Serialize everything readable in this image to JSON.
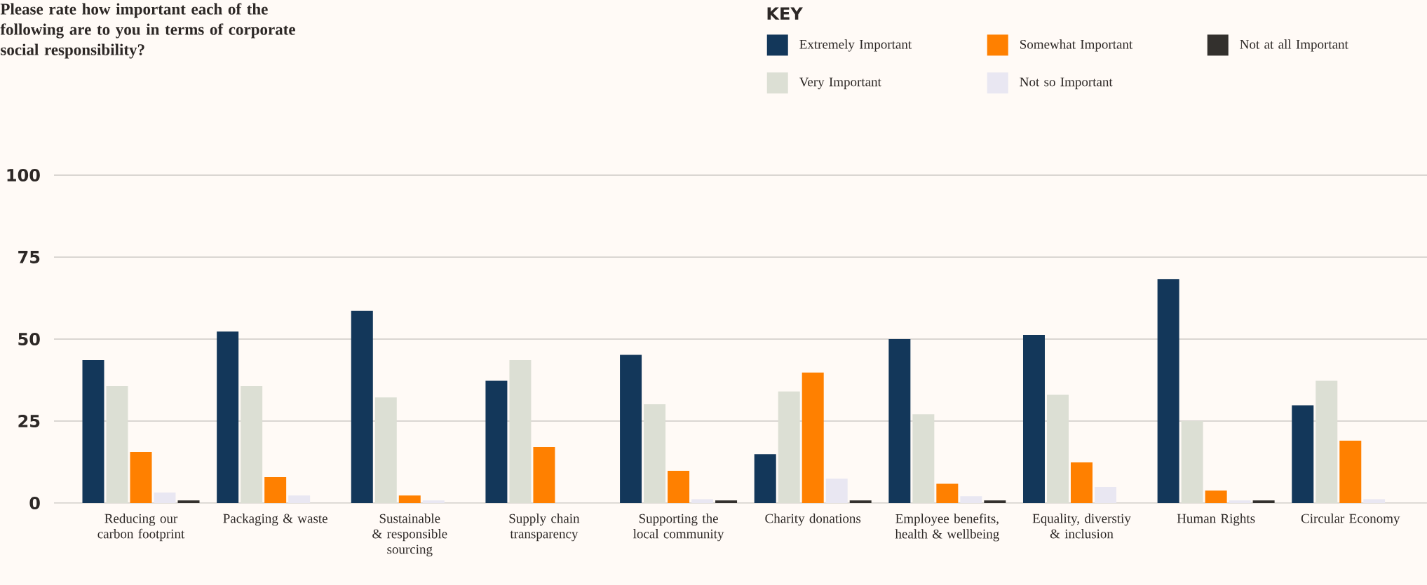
{
  "chart_data": {
    "type": "bar",
    "title": "Please rate how important each of the following are to you in terms of corporate social responsibility?",
    "legend_title": "KEY",
    "categories": [
      "Reducing our carbon footprint",
      "Packaging & waste",
      "Sustainable & responsible sourcing",
      "Supply chain transparency",
      "Supporting the local community",
      "Charity donations",
      "Employee benefits, health & wellbeing",
      "Equality, diverstiy & inclusion",
      "Human Rights",
      "Circular Economy"
    ],
    "series": [
      {
        "name": "Extremely Important",
        "color": "#13375a",
        "values": [
          43.6,
          52.3,
          58.6,
          37.3,
          45.2,
          14.9,
          50.0,
          51.3,
          68.3,
          29.8
        ]
      },
      {
        "name": "Very Important",
        "color": "#dcdfd4",
        "values": [
          35.7,
          35.7,
          32.2,
          43.6,
          30.1,
          34.0,
          27.1,
          33.0,
          25.0,
          37.3
        ]
      },
      {
        "name": "Somewhat Important",
        "color": "#ff8000",
        "values": [
          15.6,
          7.9,
          2.3,
          17.1,
          9.8,
          39.8,
          5.9,
          12.4,
          3.8,
          19.0
        ]
      },
      {
        "name": "Not so Important",
        "color": "#e9e7f2",
        "values": [
          3.2,
          2.3,
          0.8,
          0,
          1.2,
          7.4,
          2.1,
          4.9,
          0.8,
          1.2
        ]
      },
      {
        "name": "Not at all Important",
        "color": "#33302d",
        "values": [
          0.8,
          0,
          0,
          0,
          0.8,
          0.8,
          0.8,
          0,
          0.8,
          0
        ]
      }
    ],
    "ylim": [
      0,
      100
    ],
    "yticks": [
      0,
      25,
      50,
      75,
      100
    ],
    "grid": "y",
    "legend": "top right"
  }
}
